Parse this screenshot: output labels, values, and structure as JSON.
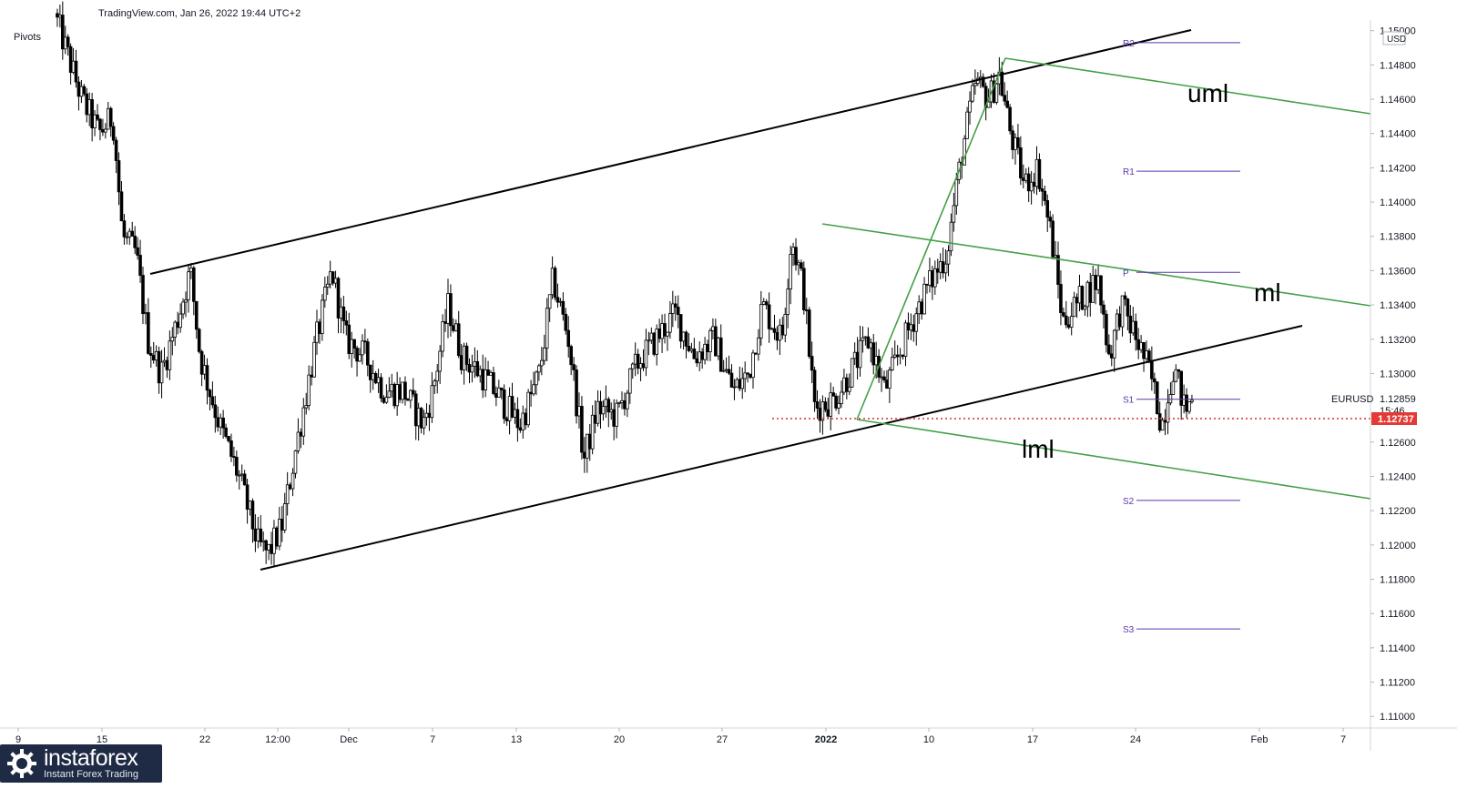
{
  "header": {
    "source": "TradingView.com, Jan 26, 2022 19:44 UTC+2",
    "indicator": "Pivots"
  },
  "branding": {
    "name": "instaforex",
    "tagline": "Instant Forex Trading"
  },
  "chart_data": {
    "type": "candlestick",
    "symbol": "EURUSD",
    "currency": "USD",
    "last_price": "1.12859",
    "countdown": "15:46",
    "marker_price_label": "1.12737",
    "marker_price": 1.12737,
    "y_range": [
      1.1098,
      1.1503
    ],
    "y_ticks": [
      "1.15000",
      "1.14800",
      "1.14600",
      "1.14400",
      "1.14200",
      "1.14000",
      "1.13800",
      "1.13600",
      "1.13400",
      "1.13200",
      "1.13000",
      "1.12600",
      "1.12400",
      "1.12200",
      "1.12000",
      "1.11800",
      "1.11600",
      "1.11400",
      "1.11200",
      "1.11000"
    ],
    "x_ticks": [
      "9",
      "15",
      "22",
      "12:00",
      "Dec",
      "7",
      "13",
      "20",
      "27",
      "2022",
      "10",
      "17",
      "24",
      "Feb",
      "7"
    ],
    "pivots": [
      {
        "label": "R2",
        "value": 1.1493
      },
      {
        "label": "R1",
        "value": 1.1418
      },
      {
        "label": "P",
        "value": 1.1359
      },
      {
        "label": "S1",
        "value": 1.1285
      },
      {
        "label": "S2",
        "value": 1.1226
      },
      {
        "label": "S3",
        "value": 1.1151
      }
    ],
    "pitchfork_labels": [
      "uml",
      "ml",
      "lml"
    ],
    "price_path": [
      [
        0.0,
        1.151
      ],
      [
        1.4,
        1.146
      ],
      [
        2.3,
        1.144
      ],
      [
        3.0,
        1.145
      ],
      [
        3.5,
        1.138
      ],
      [
        4.2,
        1.137
      ],
      [
        4.8,
        1.132
      ],
      [
        5.5,
        1.13
      ],
      [
        6.3,
        1.133
      ],
      [
        7.0,
        1.136
      ],
      [
        7.5,
        1.131
      ],
      [
        8.5,
        1.127
      ],
      [
        9.5,
        1.124
      ],
      [
        10.5,
        1.12
      ],
      [
        11.0,
        1.1195
      ],
      [
        11.7,
        1.121
      ],
      [
        12.5,
        1.126
      ],
      [
        13.5,
        1.132
      ],
      [
        14.3,
        1.136
      ],
      [
        15.0,
        1.132
      ],
      [
        16.0,
        1.131
      ],
      [
        17.0,
        1.129
      ],
      [
        18.0,
        1.129
      ],
      [
        19.0,
        1.127
      ],
      [
        19.5,
        1.129
      ],
      [
        20.3,
        1.134
      ],
      [
        21.0,
        1.131
      ],
      [
        22.0,
        1.13
      ],
      [
        23.0,
        1.1285
      ],
      [
        24.0,
        1.127
      ],
      [
        25.0,
        1.13
      ],
      [
        25.7,
        1.1355
      ],
      [
        26.5,
        1.132
      ],
      [
        27.3,
        1.125
      ],
      [
        28.0,
        1.128
      ],
      [
        29.0,
        1.1275
      ],
      [
        30.0,
        1.1305
      ],
      [
        31.0,
        1.132
      ],
      [
        32.0,
        1.1335
      ],
      [
        33.0,
        1.131
      ],
      [
        34.0,
        1.132
      ],
      [
        35.0,
        1.129
      ],
      [
        35.8,
        1.13
      ],
      [
        36.5,
        1.134
      ],
      [
        37.5,
        1.132
      ],
      [
        38.0,
        1.138
      ],
      [
        38.6,
        1.135
      ],
      [
        39.2,
        1.128
      ],
      [
        40.2,
        1.1285
      ],
      [
        41.0,
        1.13
      ],
      [
        42.0,
        1.132
      ],
      [
        42.8,
        1.129
      ],
      [
        43.5,
        1.131
      ],
      [
        44.2,
        1.133
      ],
      [
        45.0,
        1.135
      ],
      [
        46.0,
        1.137
      ],
      [
        46.8,
        1.143
      ],
      [
        47.5,
        1.147
      ],
      [
        48.2,
        1.146
      ],
      [
        48.7,
        1.1475
      ],
      [
        49.3,
        1.144
      ],
      [
        50.0,
        1.141
      ],
      [
        50.7,
        1.142
      ],
      [
        51.4,
        1.138
      ],
      [
        52.0,
        1.133
      ],
      [
        53.0,
        1.1345
      ],
      [
        53.8,
        1.1355
      ],
      [
        54.4,
        1.131
      ],
      [
        55.0,
        1.134
      ],
      [
        55.8,
        1.132
      ],
      [
        56.5,
        1.13
      ],
      [
        57.1,
        1.127
      ],
      [
        57.7,
        1.1305
      ],
      [
        58.3,
        1.1278
      ],
      [
        58.7,
        1.1286
      ]
    ]
  }
}
